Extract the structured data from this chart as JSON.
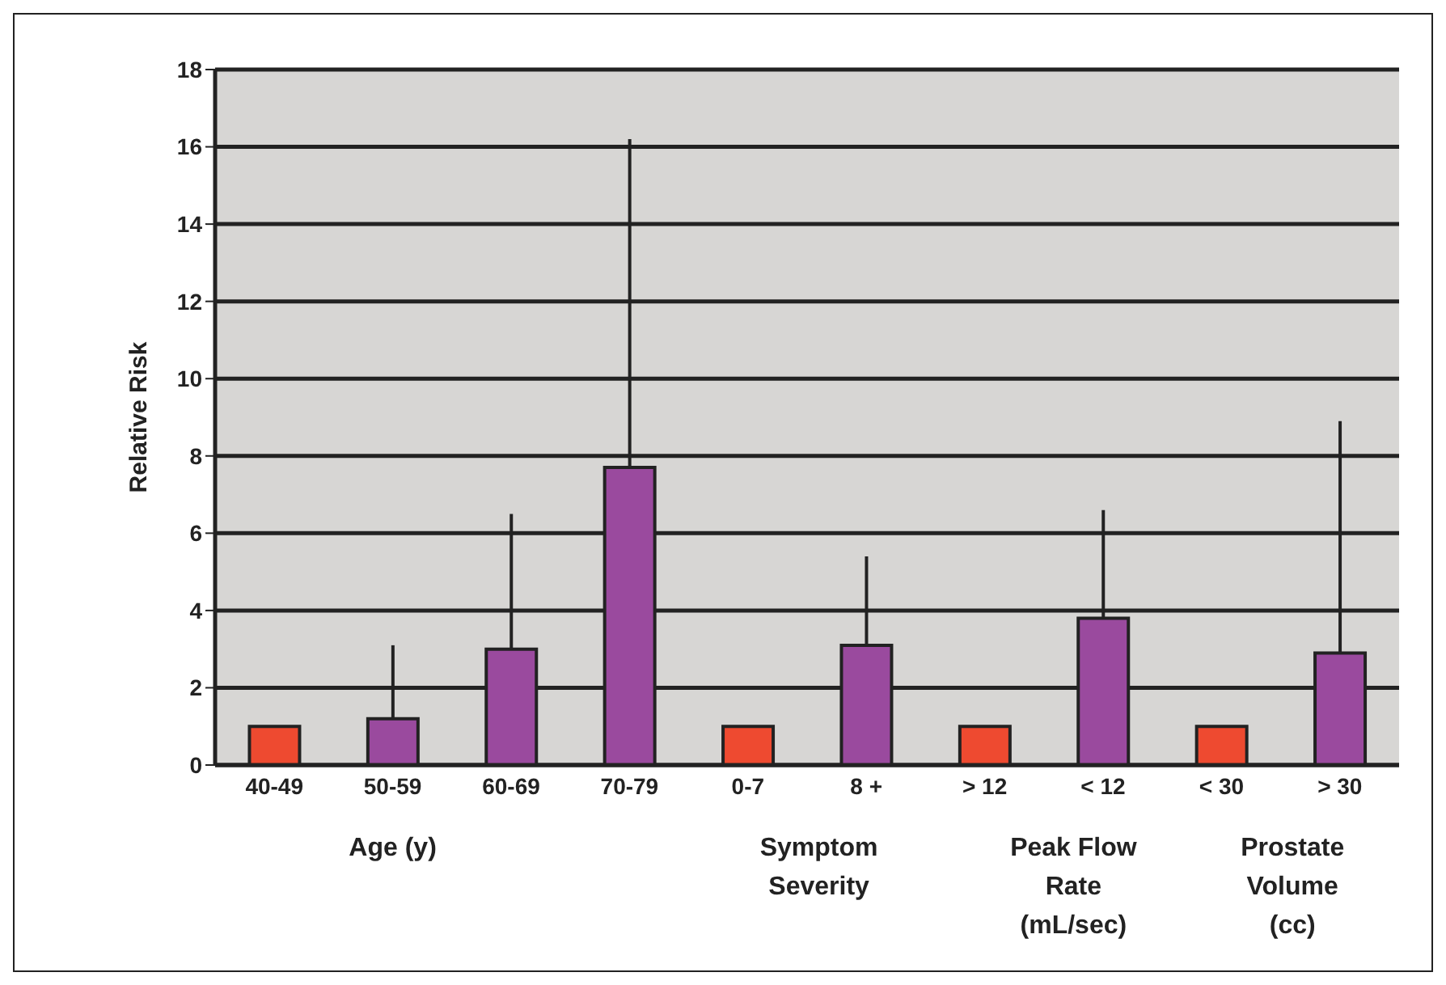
{
  "chart_data": {
    "type": "bar",
    "ylabel": "Relative Risk",
    "categories": [
      "40-49",
      "50-59",
      "60-69",
      "70-79",
      "0-7",
      "8 +",
      "> 12",
      "< 12",
      "< 30",
      "> 30"
    ],
    "values": [
      1,
      1.2,
      3.0,
      7.7,
      1,
      3.1,
      1,
      3.8,
      1,
      2.9
    ],
    "colors": [
      "#ee4a30",
      "#9a4a9e",
      "#9a4a9e",
      "#9a4a9e",
      "#ee4a30",
      "#9a4a9e",
      "#ee4a30",
      "#9a4a9e",
      "#ee4a30",
      "#9a4a9e"
    ],
    "errors": [
      null,
      [
        1.2,
        3.1
      ],
      [
        3.0,
        6.5
      ],
      [
        7.7,
        16.2
      ],
      null,
      [
        3.1,
        5.4
      ],
      null,
      [
        3.8,
        6.6
      ],
      null,
      [
        2.9,
        8.9
      ]
    ],
    "ylim": [
      0,
      18
    ],
    "yticks": [
      0,
      2,
      4,
      6,
      8,
      10,
      12,
      14,
      16,
      18
    ],
    "grid": "y",
    "annotations": [
      "Age (y)",
      "Symptom Severity",
      "Peak Flow Rate (mL/sec)",
      "Prostate Volume (cc)"
    ]
  }
}
